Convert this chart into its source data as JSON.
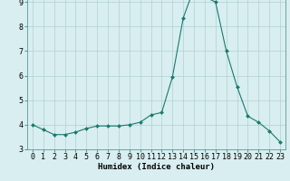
{
  "x": [
    0,
    1,
    2,
    3,
    4,
    5,
    6,
    7,
    8,
    9,
    10,
    11,
    12,
    13,
    14,
    15,
    16,
    17,
    18,
    19,
    20,
    21,
    22,
    23
  ],
  "y": [
    4.0,
    3.8,
    3.6,
    3.6,
    3.7,
    3.85,
    3.95,
    3.95,
    3.95,
    4.0,
    4.1,
    4.4,
    4.5,
    5.95,
    8.35,
    9.55,
    9.2,
    9.0,
    7.0,
    5.55,
    4.35,
    4.1,
    3.75,
    3.3
  ],
  "line_color": "#1a7a6e",
  "marker": "D",
  "marker_size": 2.0,
  "bg_color": "#d8eef0",
  "grid_color": "#b0d0d4",
  "xlabel": "Humidex (Indice chaleur)",
  "ylim": [
    3.0,
    10.0
  ],
  "xlim": [
    -0.5,
    23.5
  ],
  "yticks": [
    3,
    4,
    5,
    6,
    7,
    8,
    9
  ],
  "xticks": [
    0,
    1,
    2,
    3,
    4,
    5,
    6,
    7,
    8,
    9,
    10,
    11,
    12,
    13,
    14,
    15,
    16,
    17,
    18,
    19,
    20,
    21,
    22,
    23
  ],
  "xlabel_fontsize": 6.5,
  "tick_fontsize": 6.0,
  "line_width": 0.8,
  "spine_color": "#5a9a9a"
}
